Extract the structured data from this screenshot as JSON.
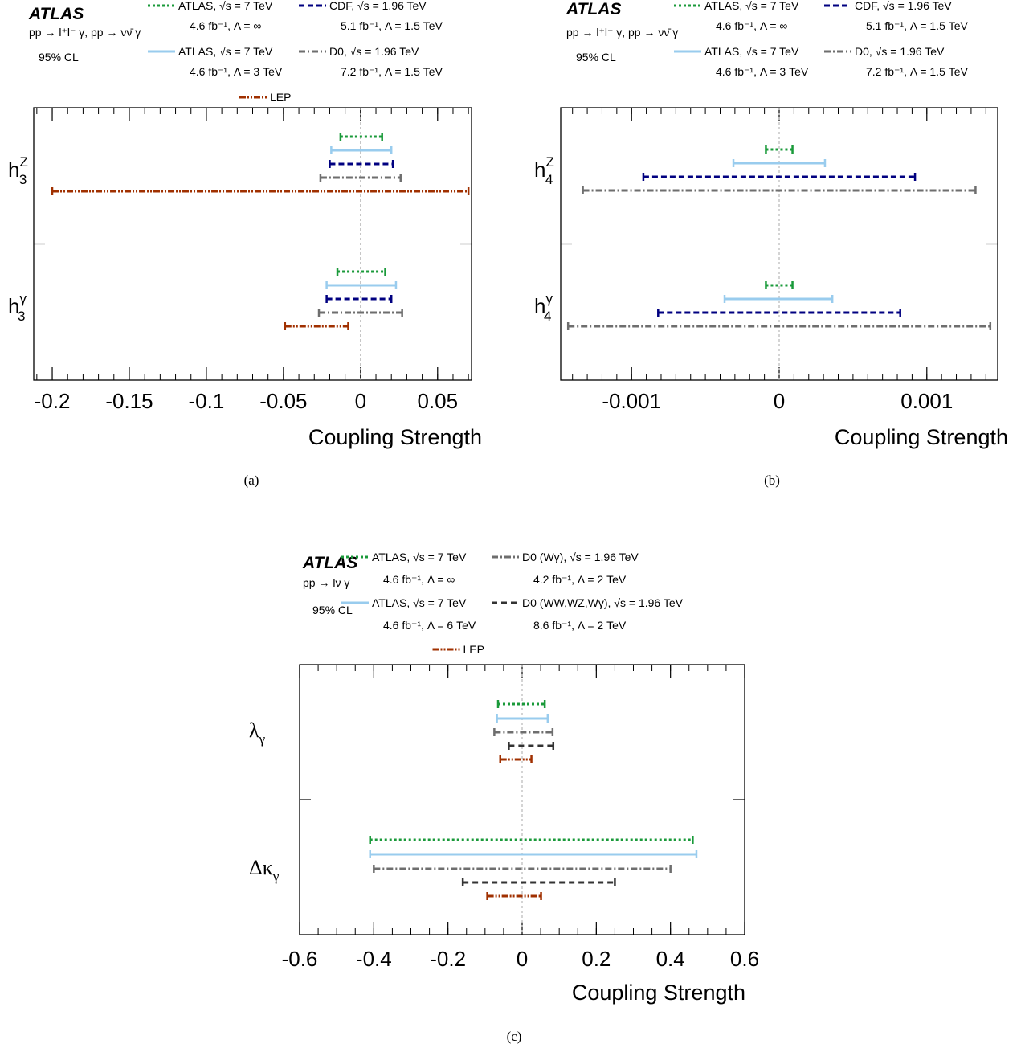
{
  "styles": {
    "atlas_a": {
      "color": "#1a9a3a",
      "dash": "3,3",
      "width": 3
    },
    "atlas_b": {
      "color": "#99ccee",
      "dash": "",
      "width": 3
    },
    "cdf": {
      "color": "#000080",
      "dash": "7,4",
      "width": 3
    },
    "d0": {
      "color": "#6e6e6e",
      "dash": "8,3,2,3",
      "width": 3
    },
    "lep": {
      "color": "#a03000",
      "dash": "8,2,2,2,2,2",
      "width": 3
    },
    "d0_multi": {
      "color": "#333333",
      "dash": "7,5",
      "width": 3
    }
  },
  "chart_data": [
    {
      "type": "interval",
      "caption": "(a)",
      "xlabel": "Coupling Strength",
      "xlim": [
        -0.212,
        0.072
      ],
      "ticks": [
        "-0.2",
        "-0.15",
        "-0.1",
        "-0.05",
        "0",
        "0.05"
      ],
      "tick_values": [
        -0.2,
        -0.15,
        -0.1,
        -0.05,
        0,
        0.05
      ],
      "minor_step": 0.01,
      "atlas": "ATLAS",
      "process": "pp → l⁺l⁻ γ, pp → νν̄ γ",
      "cl": "95% CL",
      "legend": [
        {
          "style": "atlas_a",
          "l1": "ATLAS, √s = 7 TeV",
          "l2": "4.6 fb⁻¹,  Λ = ∞"
        },
        {
          "style": "cdf",
          "l1": "CDF, √s = 1.96 TeV",
          "l2": "5.1 fb⁻¹,  Λ = 1.5 TeV"
        },
        {
          "style": "atlas_b",
          "l1": "ATLAS, √s = 7 TeV",
          "l2": "4.6 fb⁻¹,  Λ = 3 TeV"
        },
        {
          "style": "d0",
          "l1": "D0, √s = 1.96 TeV",
          "l2": "7.2 fb⁻¹,  Λ = 1.5 TeV"
        },
        {
          "style": "lep",
          "l1": "LEP",
          "l2": ""
        }
      ],
      "groups": [
        {
          "label": "h",
          "sup": "Z",
          "sub": "3",
          "series": [
            {
              "style": "atlas_a",
              "low": -0.013,
              "high": 0.014
            },
            {
              "style": "atlas_b",
              "low": -0.019,
              "high": 0.02
            },
            {
              "style": "cdf",
              "low": -0.02,
              "high": 0.021
            },
            {
              "style": "d0",
              "low": -0.026,
              "high": 0.026
            },
            {
              "style": "lep",
              "low": -0.2,
              "high": 0.07
            }
          ]
        },
        {
          "label": "h",
          "sup": "γ",
          "sub": "3",
          "series": [
            {
              "style": "atlas_a",
              "low": -0.015,
              "high": 0.016
            },
            {
              "style": "atlas_b",
              "low": -0.022,
              "high": 0.023
            },
            {
              "style": "cdf",
              "low": -0.022,
              "high": 0.02
            },
            {
              "style": "d0",
              "low": -0.027,
              "high": 0.027
            },
            {
              "style": "lep",
              "low": -0.049,
              "high": -0.008
            }
          ]
        }
      ]
    },
    {
      "type": "interval",
      "caption": "(b)",
      "xlabel": "Coupling Strength",
      "xlim": [
        -0.00148,
        0.00148
      ],
      "ticks": [
        "-0.001",
        "0",
        "0.001"
      ],
      "tick_values": [
        -0.001,
        0,
        0.001
      ],
      "minor_step": 0.0001,
      "atlas": "ATLAS",
      "process": "pp → l⁺l⁻ γ, pp → νν̄ γ",
      "cl": "95% CL",
      "legend": [
        {
          "style": "atlas_a",
          "l1": "ATLAS, √s = 7 TeV",
          "l2": "4.6 fb⁻¹,  Λ = ∞"
        },
        {
          "style": "cdf",
          "l1": "CDF, √s = 1.96 TeV",
          "l2": "5.1 fb⁻¹,  Λ = 1.5 TeV"
        },
        {
          "style": "atlas_b",
          "l1": "ATLAS, √s = 7 TeV",
          "l2": "4.6 fb⁻¹,  Λ = 3 TeV"
        },
        {
          "style": "d0",
          "l1": "D0, √s = 1.96 TeV",
          "l2": "7.2 fb⁻¹,  Λ = 1.5 TeV"
        }
      ],
      "groups": [
        {
          "label": "h",
          "sup": "Z",
          "sub": "4",
          "series": [
            {
              "style": "atlas_a",
              "low": -9e-05,
              "high": 9e-05
            },
            {
              "style": "atlas_b",
              "low": -0.00031,
              "high": 0.00031
            },
            {
              "style": "cdf",
              "low": -0.00092,
              "high": 0.00092
            },
            {
              "style": "d0",
              "low": -0.00133,
              "high": 0.00133
            }
          ]
        },
        {
          "label": "h",
          "sup": "γ",
          "sub": "4",
          "series": [
            {
              "style": "atlas_a",
              "low": -9e-05,
              "high": 9e-05
            },
            {
              "style": "atlas_b",
              "low": -0.00037,
              "high": 0.00036
            },
            {
              "style": "cdf",
              "low": -0.00082,
              "high": 0.00082
            },
            {
              "style": "d0",
              "low": -0.00143,
              "high": 0.00143
            }
          ]
        }
      ]
    },
    {
      "type": "interval",
      "caption": "(c)",
      "xlabel": "Coupling Strength",
      "xlim": [
        -0.6,
        0.6
      ],
      "ticks": [
        "-0.6",
        "-0.4",
        "-0.2",
        "0",
        "0.2",
        "0.4",
        "0.6"
      ],
      "tick_values": [
        -0.6,
        -0.4,
        -0.2,
        0,
        0.2,
        0.4,
        0.6
      ],
      "minor_step": 0.05,
      "atlas": "ATLAS",
      "process": "pp → lν γ",
      "cl": "95% CL",
      "legend": [
        {
          "style": "atlas_a",
          "l1": "ATLAS, √s = 7 TeV",
          "l2": "4.6 fb⁻¹,  Λ = ∞"
        },
        {
          "style": "d0",
          "l1": "D0 (Wγ), √s = 1.96 TeV",
          "l2": "4.2 fb⁻¹,  Λ = 2 TeV"
        },
        {
          "style": "atlas_b",
          "l1": "ATLAS, √s = 7 TeV",
          "l2": "4.6 fb⁻¹,  Λ = 6 TeV"
        },
        {
          "style": "d0_multi",
          "l1": "D0 (WW,WZ,Wγ), √s = 1.96 TeV",
          "l2": "8.6 fb⁻¹, Λ = 2 TeV"
        },
        {
          "style": "lep",
          "l1": "LEP",
          "l2": ""
        }
      ],
      "groups": [
        {
          "label": "λ",
          "sup": "",
          "sub": "γ",
          "series": [
            {
              "style": "atlas_a",
              "low": -0.065,
              "high": 0.061
            },
            {
              "style": "atlas_b",
              "low": -0.068,
              "high": 0.069
            },
            {
              "style": "d0",
              "low": -0.075,
              "high": 0.082
            },
            {
              "style": "d0_multi",
              "low": -0.036,
              "high": 0.084
            },
            {
              "style": "lep",
              "low": -0.059,
              "high": 0.025
            }
          ]
        },
        {
          "label": "Δκ",
          "sup": "",
          "sub": "γ",
          "series": [
            {
              "style": "atlas_a",
              "low": -0.41,
              "high": 0.46
            },
            {
              "style": "atlas_b",
              "low": -0.41,
              "high": 0.47
            },
            {
              "style": "d0",
              "low": -0.4,
              "high": 0.4
            },
            {
              "style": "d0_multi",
              "low": -0.16,
              "high": 0.25
            },
            {
              "style": "lep",
              "low": -0.094,
              "high": 0.051
            }
          ]
        }
      ]
    }
  ]
}
